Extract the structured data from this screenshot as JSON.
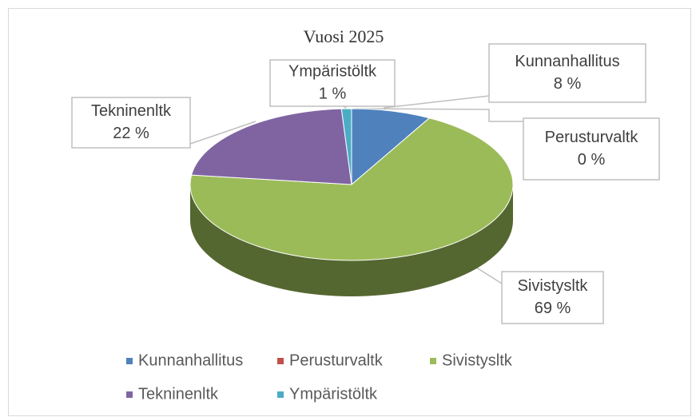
{
  "chart_data": {
    "type": "pie",
    "title": "Vuosi 2025",
    "categories": [
      "Kunnanhallitus",
      "Perusturvaltk",
      "Sivistysltk",
      "Tekninenltk",
      "Ympäristöltk"
    ],
    "values": [
      8,
      0,
      69,
      22,
      1
    ],
    "value_labels": [
      "8 %",
      "0 %",
      "69 %",
      "22 %",
      "1 %"
    ],
    "colors": [
      "#4f81bd",
      "#c0504d",
      "#9bbb59",
      "#8064a2",
      "#4bacc6"
    ]
  }
}
